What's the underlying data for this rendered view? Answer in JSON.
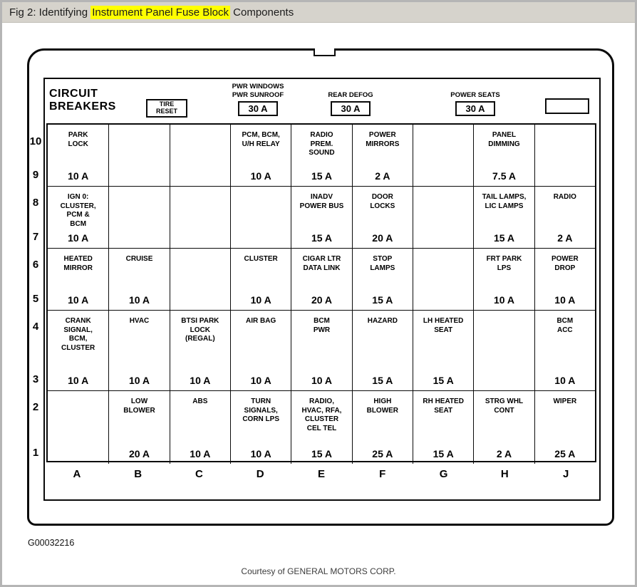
{
  "titlebar": {
    "prefix": "Fig 2: Identifying ",
    "highlight": "Instrument Panel Fuse Block",
    "suffix": " Components",
    "highlight_color": "#ffff00"
  },
  "panel": {
    "circuit_breakers_line1": "CIRCUIT",
    "circuit_breakers_line2": "BREAKERS",
    "tire_reset_line1": "TIRE",
    "tire_reset_line2": "RESET",
    "breakers": [
      {
        "label": "PWR WINDOWS\nPWR SUNROOF",
        "amp": "30 A"
      },
      {
        "label": "REAR DEFOG",
        "amp": "30 A"
      },
      {
        "label": "POWER SEATS",
        "amp": "30 A"
      }
    ]
  },
  "grid": {
    "column_letters": [
      "A",
      "B",
      "C",
      "D",
      "E",
      "F",
      "G",
      "H",
      "J"
    ],
    "bands": [
      {
        "row_numbers": [
          "10",
          "9"
        ],
        "cells": [
          {
            "label": "PARK\nLOCK",
            "amp": "10 A"
          },
          {
            "label": "",
            "amp": ""
          },
          {
            "label": "",
            "amp": ""
          },
          {
            "label": "PCM, BCM,\nU/H RELAY",
            "amp": "10 A"
          },
          {
            "label": "RADIO\nPREM.\nSOUND",
            "amp": "15 A"
          },
          {
            "label": "POWER\nMIRRORS",
            "amp": "2 A"
          },
          {
            "label": "",
            "amp": ""
          },
          {
            "label": "PANEL\nDIMMING",
            "amp": "7.5 A"
          },
          {
            "label": "",
            "amp": ""
          }
        ]
      },
      {
        "row_numbers": [
          "8",
          "7"
        ],
        "cells": [
          {
            "label": "IGN 0:\nCLUSTER,\nPCM &\nBCM",
            "amp": "10 A"
          },
          {
            "label": "",
            "amp": ""
          },
          {
            "label": "",
            "amp": ""
          },
          {
            "label": "",
            "amp": ""
          },
          {
            "label": "INADV\nPOWER BUS",
            "amp": "15 A"
          },
          {
            "label": "DOOR\nLOCKS",
            "amp": "20 A"
          },
          {
            "label": "",
            "amp": ""
          },
          {
            "label": "TAIL LAMPS,\nLIC LAMPS",
            "amp": "15 A"
          },
          {
            "label": "RADIO",
            "amp": "2 A"
          }
        ]
      },
      {
        "row_numbers": [
          "6",
          "5"
        ],
        "cells": [
          {
            "label": "HEATED\nMIRROR",
            "amp": "10 A"
          },
          {
            "label": "CRUISE",
            "amp": "10 A"
          },
          {
            "label": "",
            "amp": ""
          },
          {
            "label": "CLUSTER",
            "amp": "10 A"
          },
          {
            "label": "CIGAR LTR\nDATA LINK",
            "amp": "20 A"
          },
          {
            "label": "STOP\nLAMPS",
            "amp": "15 A"
          },
          {
            "label": "",
            "amp": ""
          },
          {
            "label": "FRT PARK\nLPS",
            "amp": "10 A"
          },
          {
            "label": "POWER\nDROP",
            "amp": "10 A"
          }
        ]
      },
      {
        "row_numbers": [
          "4",
          "3"
        ],
        "cells": [
          {
            "label": "CRANK\nSIGNAL,\nBCM,\nCLUSTER",
            "amp": "10 A"
          },
          {
            "label": "HVAC",
            "amp": "10 A"
          },
          {
            "label": "BTSI PARK\nLOCK\n(REGAL)",
            "amp": "10 A"
          },
          {
            "label": "AIR BAG",
            "amp": "10 A"
          },
          {
            "label": "BCM\nPWR",
            "amp": "10 A"
          },
          {
            "label": "HAZARD",
            "amp": "15 A"
          },
          {
            "label": "LH HEATED\nSEAT",
            "amp": "15 A"
          },
          {
            "label": "",
            "amp": ""
          },
          {
            "label": "BCM\nACC",
            "amp": "10 A"
          }
        ]
      },
      {
        "row_numbers": [
          "2",
          "1"
        ],
        "cells": [
          {
            "label": "",
            "amp": ""
          },
          {
            "label": "LOW\nBLOWER",
            "amp": "20 A"
          },
          {
            "label": "ABS",
            "amp": "10 A"
          },
          {
            "label": "TURN\nSIGNALS,\nCORN LPS",
            "amp": "10 A"
          },
          {
            "label": "RADIO,\nHVAC, RFA,\nCLUSTER\nCEL TEL",
            "amp": "15 A"
          },
          {
            "label": "HIGH\nBLOWER",
            "amp": "25 A"
          },
          {
            "label": "RH HEATED\nSEAT",
            "amp": "15 A"
          },
          {
            "label": "STRG WHL\nCONT",
            "amp": "2 A"
          },
          {
            "label": "WIPER",
            "amp": "25 A"
          }
        ]
      }
    ]
  },
  "footer": {
    "figure_code": "G00032216",
    "courtesy": "Courtesy of GENERAL MOTORS CORP."
  }
}
